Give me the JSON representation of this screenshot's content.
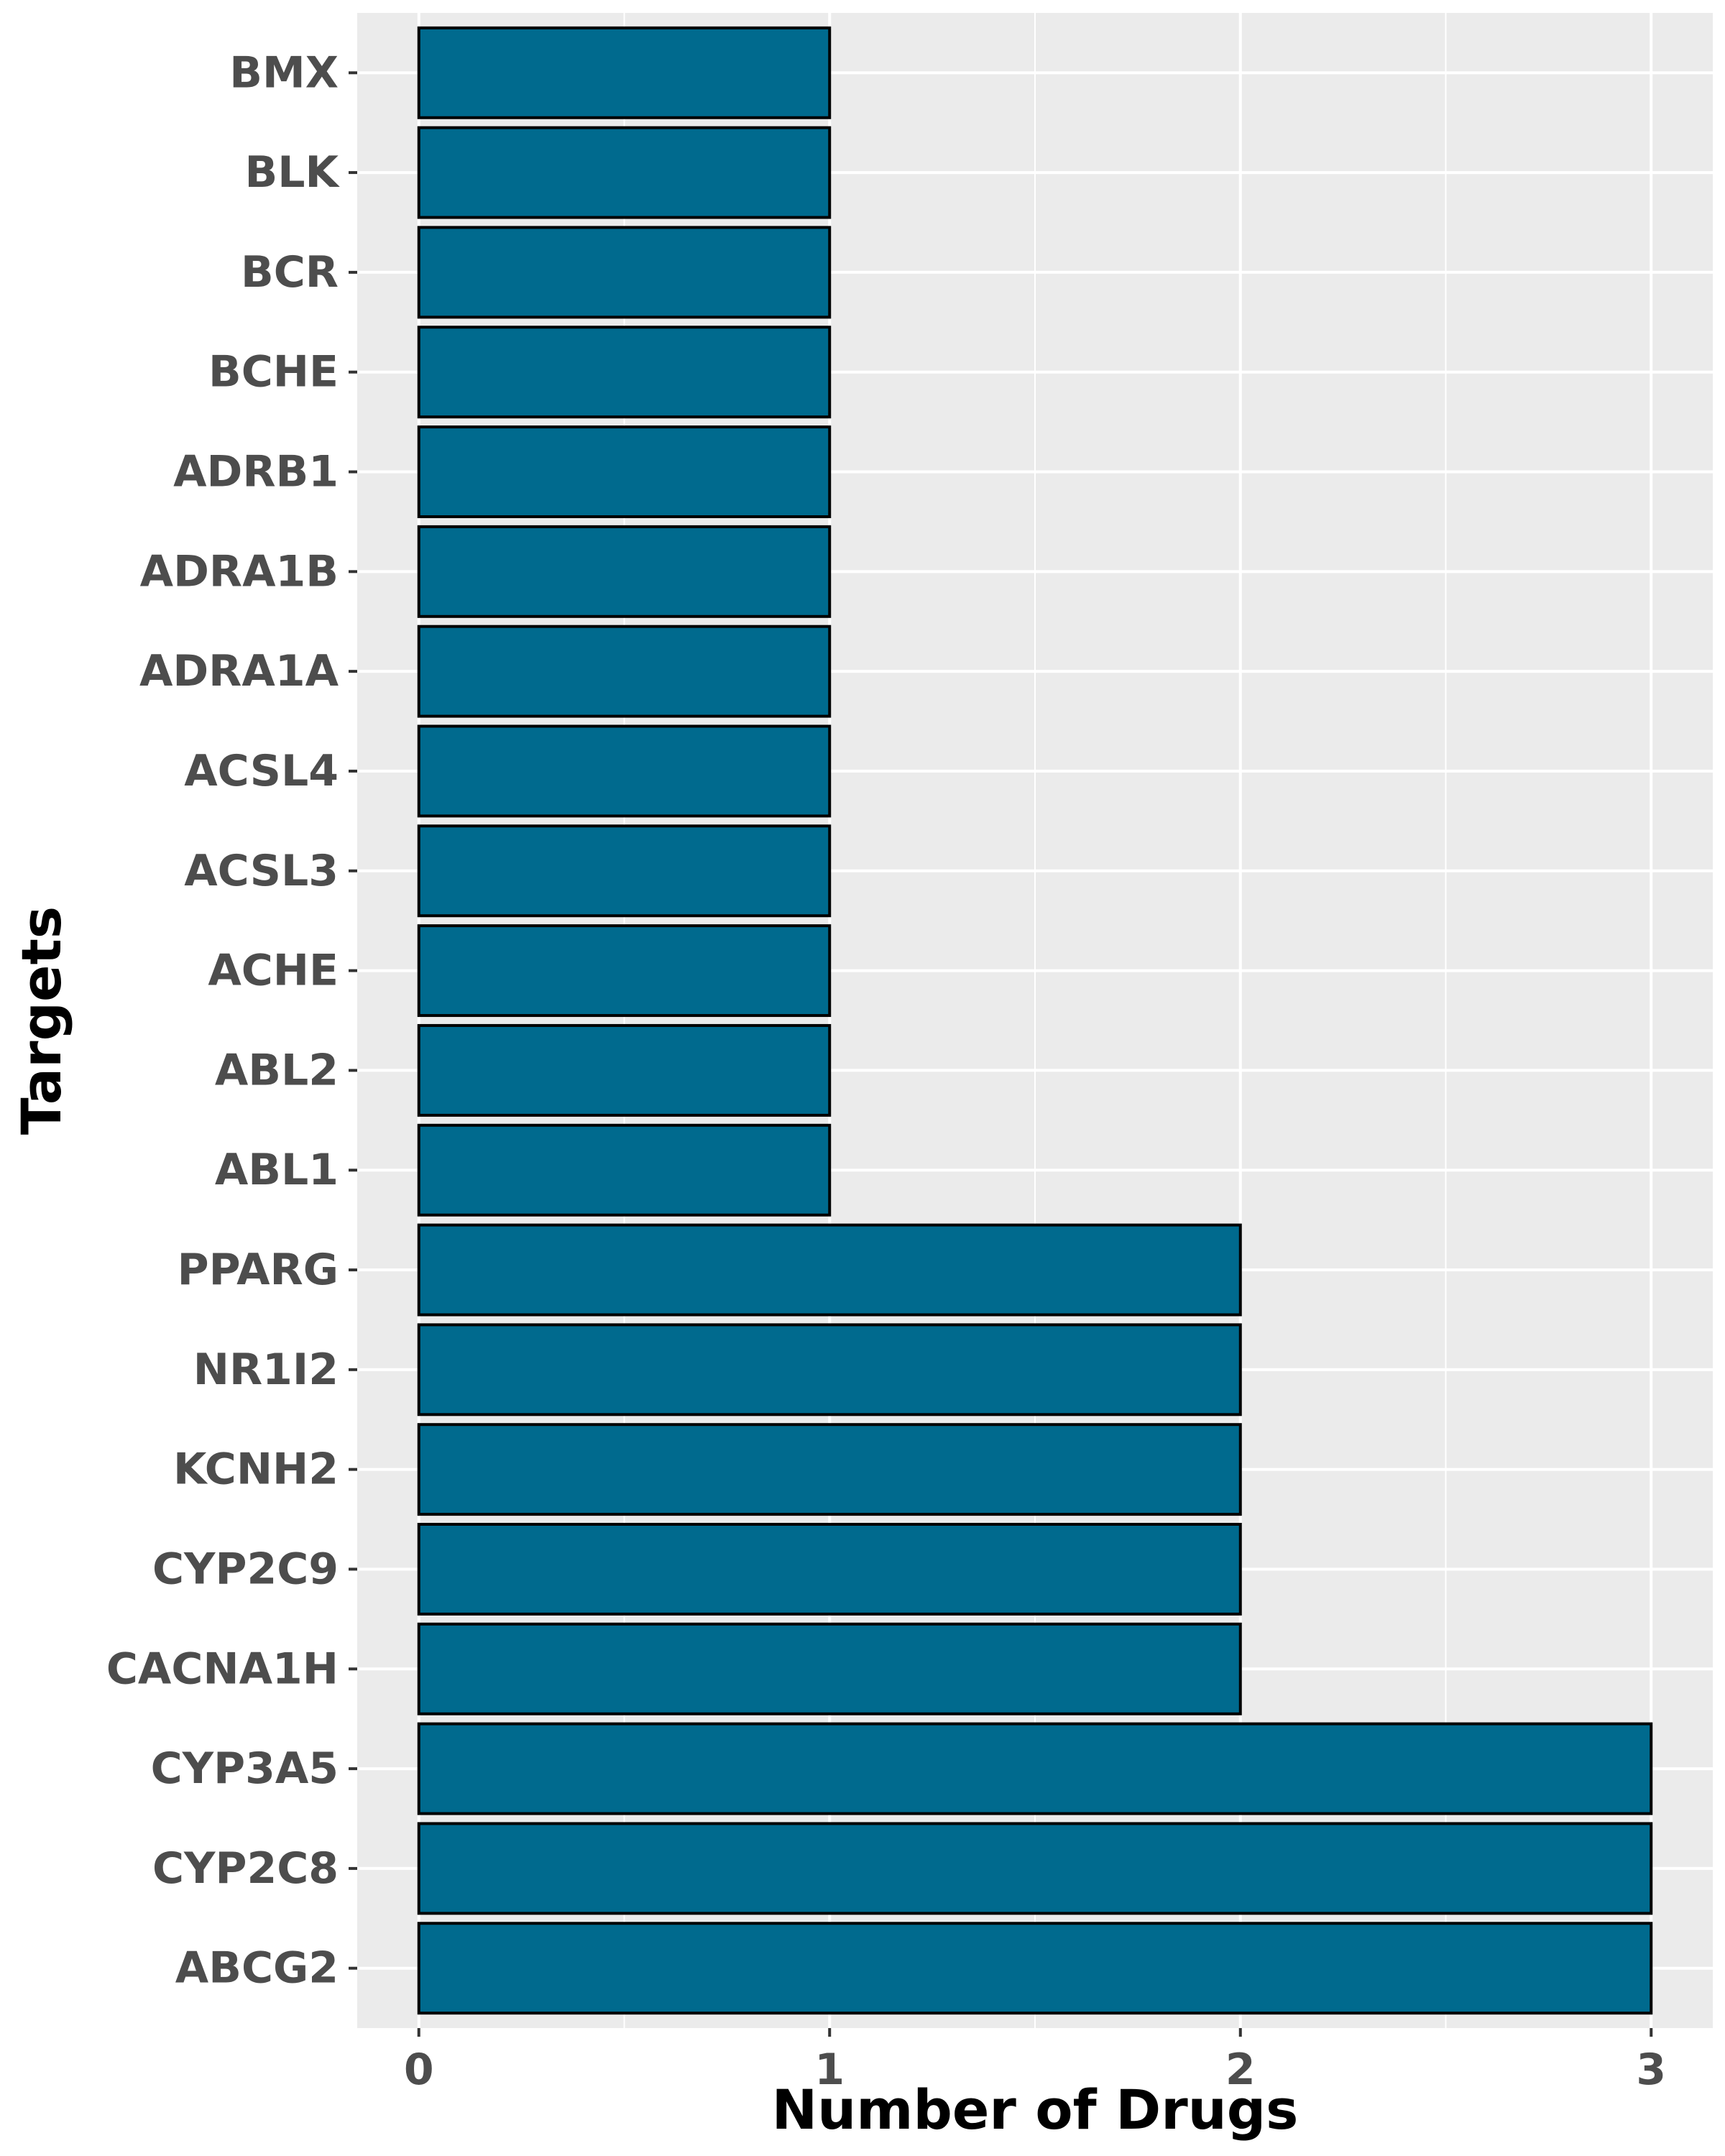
{
  "chart_data": {
    "type": "bar",
    "orientation": "horizontal",
    "xlabel": "Number of Drugs",
    "ylabel": "Targets",
    "categories": [
      "ABCG2",
      "CYP2C8",
      "CYP3A5",
      "CACNA1H",
      "CYP2C9",
      "KCNH2",
      "NR1I2",
      "PPARG",
      "ABL1",
      "ABL2",
      "ACHE",
      "ACSL3",
      "ACSL4",
      "ADRA1A",
      "ADRA1B",
      "ADRB1",
      "BCHE",
      "BCR",
      "BLK",
      "BMX"
    ],
    "values": [
      3,
      3,
      3,
      2,
      2,
      2,
      2,
      2,
      1,
      1,
      1,
      1,
      1,
      1,
      1,
      1,
      1,
      1,
      1,
      1
    ],
    "xlim": [
      -0.15,
      3.15
    ],
    "x_ticks": [
      "0",
      "1",
      "2",
      "3"
    ],
    "grid": true,
    "colors": {
      "bar_fill": "#006a8e",
      "bar_stroke": "#000000",
      "panel_background": "#ebebeb",
      "grid_major": "#ffffff",
      "tick_label": "#4d4d4d"
    }
  }
}
